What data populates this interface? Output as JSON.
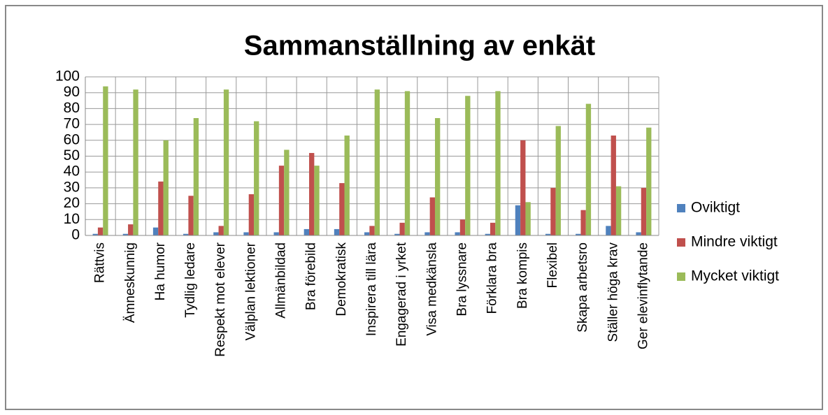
{
  "chart_data": {
    "type": "bar",
    "title": "Sammanställning av enkät",
    "categories": [
      "Rättvis",
      "Ämneskunnig",
      "Ha humor",
      "Tydlig ledare",
      "Respekt mot elever",
      "Välplan lektioner",
      "Allmänbildad",
      "Bra förebild",
      "Demokratisk",
      "Inspirera till lära",
      "Engagerad i yrket",
      "Visa medkänsla",
      "Bra lyssnare",
      "Förklara bra",
      "Bra kompis",
      "Flexibel",
      "Skapa arbetsro",
      "Ställer höga krav",
      "Ger elevinflytande"
    ],
    "series": [
      {
        "name": "Oviktigt",
        "color": "#4f81bd",
        "values": [
          1,
          1,
          5,
          1,
          2,
          2,
          2,
          4,
          4,
          2,
          1,
          2,
          2,
          1,
          19,
          1,
          1,
          6,
          2
        ]
      },
      {
        "name": "Mindre viktigt",
        "color": "#c0504d",
        "values": [
          5,
          7,
          34,
          25,
          6,
          26,
          44,
          52,
          33,
          6,
          8,
          24,
          10,
          8,
          60,
          30,
          16,
          63,
          30
        ]
      },
      {
        "name": "Mycket viktigt",
        "color": "#9bbb59",
        "values": [
          94,
          92,
          60,
          74,
          92,
          72,
          54,
          44,
          63,
          92,
          91,
          74,
          88,
          91,
          21,
          69,
          83,
          31,
          68
        ]
      }
    ],
    "ylim": [
      0,
      100
    ],
    "yticks": [
      0,
      10,
      20,
      30,
      40,
      50,
      60,
      70,
      80,
      90,
      100
    ],
    "grid": true,
    "legend": "right"
  }
}
